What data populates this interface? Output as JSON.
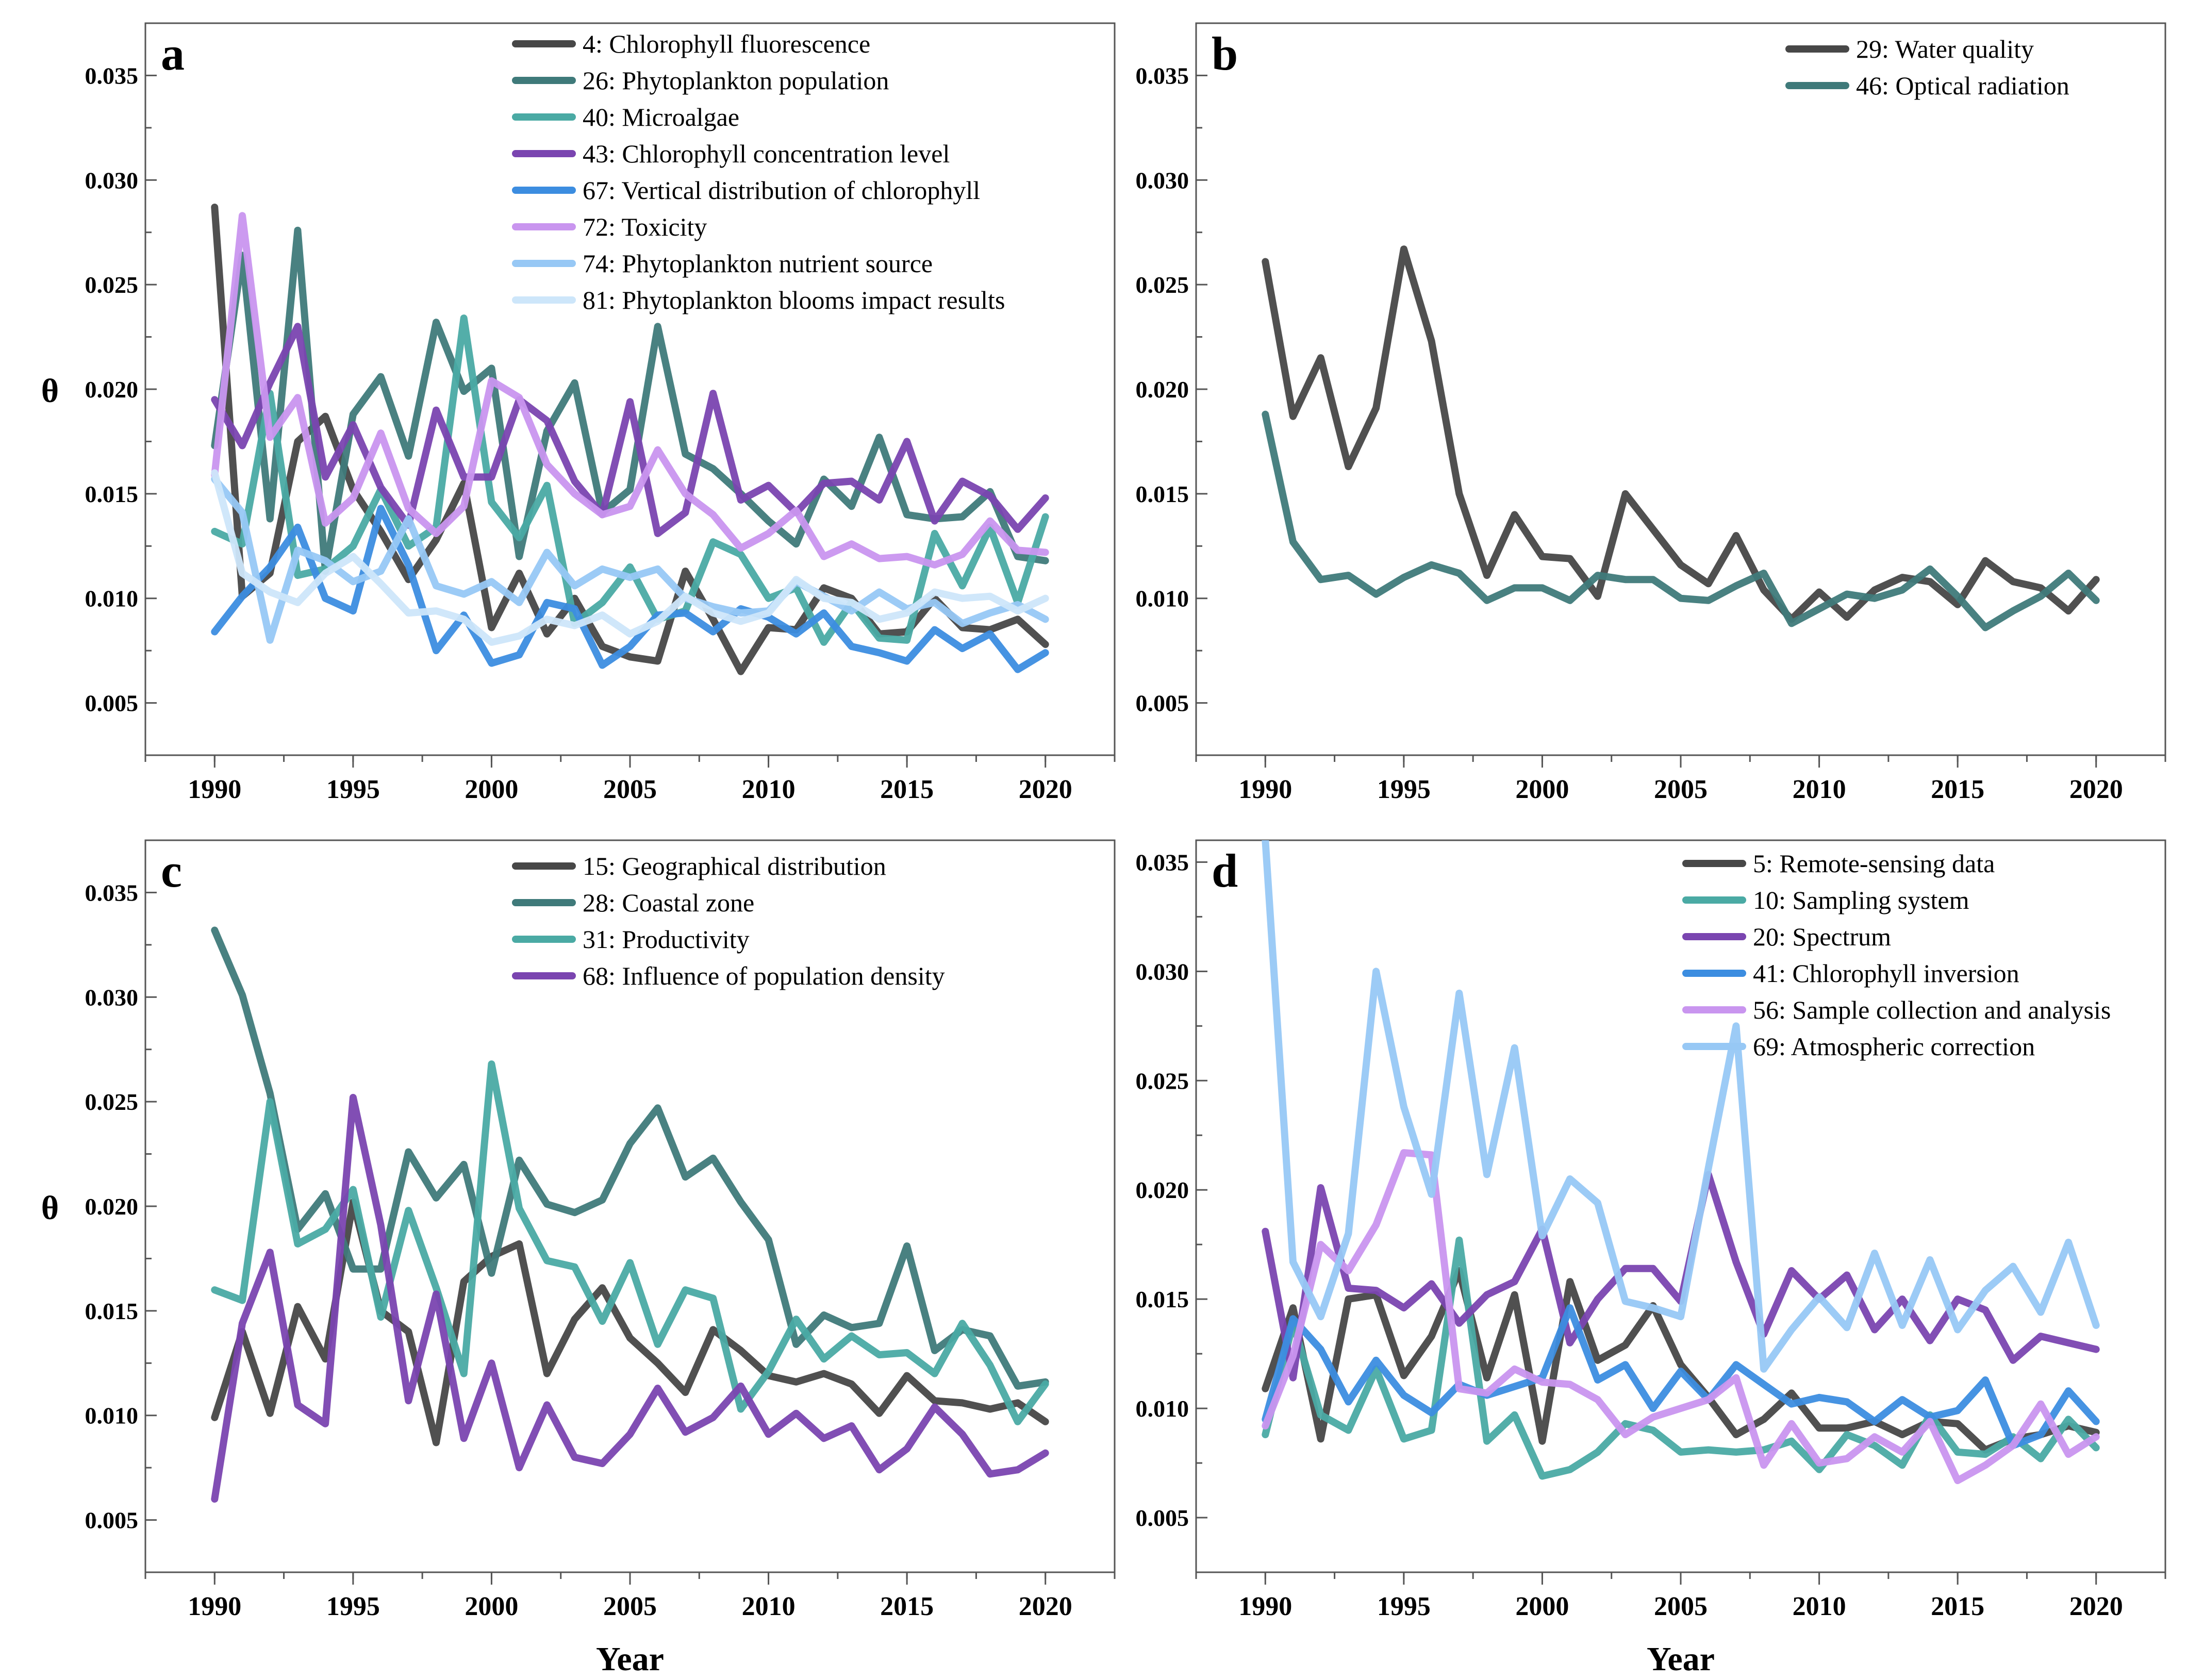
{
  "chart_data": [
    {
      "type": "line",
      "panel": "a",
      "ylabel": "θ",
      "xlabel": "",
      "x": [
        1990,
        1991,
        1992,
        1993,
        1994,
        1995,
        1996,
        1997,
        1998,
        1999,
        2000,
        2001,
        2002,
        2003,
        2004,
        2005,
        2006,
        2007,
        2008,
        2009,
        2010,
        2011,
        2012,
        2013,
        2014,
        2015,
        2016,
        2017,
        2018,
        2019,
        2020
      ],
      "xlim": [
        1987.5,
        2022.5
      ],
      "ylim": [
        0.0025,
        0.0375
      ],
      "xticks": [
        "1990",
        "1995",
        "2000",
        "2005",
        "2010",
        "2015",
        "2020"
      ],
      "yticks": [
        "0.005",
        "0.010",
        "0.015",
        "0.020",
        "0.025",
        "0.030",
        "0.035"
      ],
      "series": [
        {
          "name": "4: Chlorophyll fluorescence",
          "color": "#474747",
          "values": [
            0.0287,
            0.0101,
            0.0112,
            0.0175,
            0.0187,
            0.0152,
            0.0132,
            0.0109,
            0.0128,
            0.0155,
            0.0086,
            0.0112,
            0.0083,
            0.01,
            0.0077,
            0.0072,
            0.007,
            0.0113,
            0.009,
            0.0065,
            0.0086,
            0.0085,
            0.0105,
            0.01,
            0.0083,
            0.0084,
            0.01,
            0.0086,
            0.0085,
            0.009,
            0.0078
          ]
        },
        {
          "name": "26: Phytoplankton population",
          "color": "#3f7a7a",
          "values": [
            0.0173,
            0.0264,
            0.0138,
            0.0276,
            0.0113,
            0.0188,
            0.0206,
            0.0168,
            0.0232,
            0.0199,
            0.021,
            0.012,
            0.018,
            0.0203,
            0.0141,
            0.0152,
            0.023,
            0.0169,
            0.0162,
            0.015,
            0.0137,
            0.0126,
            0.0157,
            0.0144,
            0.0177,
            0.014,
            0.0138,
            0.0139,
            0.0151,
            0.012,
            0.0118
          ]
        },
        {
          "name": "40: Microalgae",
          "color": "#4aaaa4",
          "values": [
            0.0132,
            0.0126,
            0.0198,
            0.0111,
            0.0114,
            0.0125,
            0.0152,
            0.0125,
            0.0134,
            0.0234,
            0.0146,
            0.0129,
            0.0154,
            0.0088,
            0.0098,
            0.0115,
            0.009,
            0.0094,
            0.0127,
            0.0121,
            0.01,
            0.0105,
            0.0079,
            0.0098,
            0.0081,
            0.008,
            0.0131,
            0.0106,
            0.0134,
            0.0098,
            0.0139
          ]
        },
        {
          "name": "43: Chlorophyll concentration level",
          "color": "#7a45b0",
          "values": [
            0.0195,
            0.0173,
            0.0203,
            0.023,
            0.0158,
            0.0183,
            0.0153,
            0.0135,
            0.019,
            0.0158,
            0.0158,
            0.0195,
            0.0185,
            0.0156,
            0.014,
            0.0194,
            0.0131,
            0.0141,
            0.0198,
            0.0147,
            0.0154,
            0.0141,
            0.0155,
            0.0156,
            0.0147,
            0.0175,
            0.0137,
            0.0156,
            0.0149,
            0.0133,
            0.0148
          ]
        },
        {
          "name": "67: Vertical distribution of chlorophyll",
          "color": "#3c8de0",
          "values": [
            0.0084,
            0.0101,
            0.0115,
            0.0134,
            0.01,
            0.0094,
            0.0143,
            0.0116,
            0.0075,
            0.0092,
            0.0069,
            0.0073,
            0.0098,
            0.0095,
            0.0068,
            0.0077,
            0.0092,
            0.0093,
            0.0084,
            0.0095,
            0.0091,
            0.0083,
            0.0093,
            0.0077,
            0.0074,
            0.007,
            0.0085,
            0.0076,
            0.0083,
            0.0066,
            0.0074
          ]
        },
        {
          "name": "72: Toxicity",
          "color": "#c995ef",
          "values": [
            0.0159,
            0.0283,
            0.0177,
            0.0196,
            0.0136,
            0.0148,
            0.0179,
            0.0143,
            0.0131,
            0.0144,
            0.0204,
            0.0196,
            0.0164,
            0.015,
            0.014,
            0.0144,
            0.0171,
            0.015,
            0.014,
            0.0124,
            0.0131,
            0.0142,
            0.012,
            0.0126,
            0.0119,
            0.012,
            0.0116,
            0.0121,
            0.0137,
            0.0123,
            0.0122
          ]
        },
        {
          "name": "74: Phytoplankton nutrient source",
          "color": "#97c8f5",
          "values": [
            0.0157,
            0.0141,
            0.008,
            0.0123,
            0.0118,
            0.0108,
            0.0113,
            0.0138,
            0.0106,
            0.0102,
            0.0108,
            0.0098,
            0.0122,
            0.0106,
            0.0114,
            0.011,
            0.0114,
            0.01,
            0.0096,
            0.0093,
            0.0094,
            0.0108,
            0.0101,
            0.0094,
            0.0103,
            0.0095,
            0.0098,
            0.0088,
            0.0093,
            0.0097,
            0.009
          ]
        },
        {
          "name": "81: Phytoplankton blooms impact results",
          "color": "#cde6fa",
          "values": [
            0.016,
            0.0112,
            0.0103,
            0.0098,
            0.0112,
            0.012,
            0.0107,
            0.0093,
            0.0094,
            0.009,
            0.0079,
            0.0082,
            0.009,
            0.0087,
            0.0092,
            0.0083,
            0.0089,
            0.0101,
            0.0093,
            0.0089,
            0.0093,
            0.0109,
            0.01,
            0.0098,
            0.009,
            0.0093,
            0.0103,
            0.01,
            0.0101,
            0.0094,
            0.01
          ]
        }
      ]
    },
    {
      "type": "line",
      "panel": "b",
      "ylabel": "",
      "xlabel": "",
      "x": [
        1990,
        1991,
        1992,
        1993,
        1994,
        1995,
        1996,
        1997,
        1998,
        1999,
        2000,
        2001,
        2002,
        2003,
        2004,
        2005,
        2006,
        2007,
        2008,
        2009,
        2010,
        2011,
        2012,
        2013,
        2014,
        2015,
        2016,
        2017,
        2018,
        2019,
        2020
      ],
      "xlim": [
        1987.5,
        2022.5
      ],
      "ylim": [
        0.0025,
        0.0375
      ],
      "xticks": [
        "1990",
        "1995",
        "2000",
        "2005",
        "2010",
        "2015",
        "2020"
      ],
      "yticks": [
        "0.005",
        "0.010",
        "0.015",
        "0.020",
        "0.025",
        "0.030",
        "0.035"
      ],
      "series": [
        {
          "name": "29: Water quality",
          "color": "#474747",
          "values": [
            0.0261,
            0.0187,
            0.0215,
            0.0163,
            0.0191,
            0.0267,
            0.0223,
            0.015,
            0.0111,
            0.014,
            0.012,
            0.0119,
            0.0101,
            0.015,
            0.0133,
            0.0116,
            0.0107,
            0.013,
            0.0104,
            0.009,
            0.0103,
            0.0091,
            0.0104,
            0.011,
            0.0108,
            0.0097,
            0.0118,
            0.0108,
            0.0105,
            0.0094,
            0.0109
          ]
        },
        {
          "name": "46: Optical radiation",
          "color": "#3f7a7a",
          "values": [
            0.0188,
            0.0127,
            0.0109,
            0.0111,
            0.0102,
            0.011,
            0.0116,
            0.0112,
            0.0099,
            0.0105,
            0.0105,
            0.0099,
            0.0111,
            0.0109,
            0.0109,
            0.01,
            0.0099,
            0.0106,
            0.0112,
            0.0088,
            0.0095,
            0.0102,
            0.01,
            0.0104,
            0.0114,
            0.0101,
            0.0086,
            0.0094,
            0.0101,
            0.0112,
            0.0099
          ]
        }
      ]
    },
    {
      "type": "line",
      "panel": "c",
      "ylabel": "θ",
      "xlabel": "Year",
      "x": [
        1990,
        1991,
        1992,
        1993,
        1994,
        1995,
        1996,
        1997,
        1998,
        1999,
        2000,
        2001,
        2002,
        2003,
        2004,
        2005,
        2006,
        2007,
        2008,
        2009,
        2010,
        2011,
        2012,
        2013,
        2014,
        2015,
        2016,
        2017,
        2018,
        2019,
        2020
      ],
      "xlim": [
        1987.5,
        2022.5
      ],
      "ylim": [
        0.0025,
        0.0375
      ],
      "xticks": [
        "1990",
        "1995",
        "2000",
        "2005",
        "2010",
        "2015",
        "2020"
      ],
      "yticks": [
        "0.005",
        "0.010",
        "0.015",
        "0.020",
        "0.025",
        "0.030",
        "0.035"
      ],
      "series": [
        {
          "name": "15: Geographical distribution",
          "color": "#474747",
          "values": [
            0.0099,
            0.014,
            0.0101,
            0.0152,
            0.0127,
            0.0202,
            0.015,
            0.014,
            0.0087,
            0.0164,
            0.0176,
            0.0182,
            0.012,
            0.0146,
            0.0161,
            0.0137,
            0.0125,
            0.0111,
            0.0141,
            0.0131,
            0.0119,
            0.0116,
            0.012,
            0.0115,
            0.0101,
            0.0119,
            0.0107,
            0.0106,
            0.0103,
            0.0106,
            0.0097
          ]
        },
        {
          "name": "28: Coastal zone",
          "color": "#3f7a7a",
          "values": [
            0.0332,
            0.0301,
            0.0254,
            0.0189,
            0.0206,
            0.017,
            0.017,
            0.0226,
            0.0204,
            0.022,
            0.0168,
            0.0222,
            0.0201,
            0.0197,
            0.0203,
            0.023,
            0.0247,
            0.0214,
            0.0223,
            0.0202,
            0.0184,
            0.0134,
            0.0148,
            0.0142,
            0.0144,
            0.0181,
            0.0131,
            0.0141,
            0.0138,
            0.0114,
            0.0116
          ]
        },
        {
          "name": "31: Productivity",
          "color": "#4aaaa4",
          "values": [
            0.016,
            0.0155,
            0.025,
            0.0182,
            0.0189,
            0.0208,
            0.0147,
            0.0198,
            0.0161,
            0.012,
            0.0268,
            0.0199,
            0.0174,
            0.0171,
            0.0145,
            0.0173,
            0.0134,
            0.016,
            0.0156,
            0.0103,
            0.0121,
            0.0146,
            0.0127,
            0.0138,
            0.0129,
            0.013,
            0.012,
            0.0144,
            0.0124,
            0.0097,
            0.0115
          ]
        },
        {
          "name": "68: Influence of population density",
          "color": "#7a45b0",
          "values": [
            0.006,
            0.0144,
            0.0178,
            0.0105,
            0.0096,
            0.0252,
            0.0191,
            0.0107,
            0.0158,
            0.0089,
            0.0125,
            0.0075,
            0.0105,
            0.008,
            0.0077,
            0.0091,
            0.0113,
            0.0092,
            0.0099,
            0.0114,
            0.0091,
            0.0101,
            0.0089,
            0.0095,
            0.0074,
            0.0084,
            0.0104,
            0.0091,
            0.0072,
            0.0074,
            0.0082
          ]
        }
      ]
    },
    {
      "type": "line",
      "panel": "d",
      "ylabel": "",
      "xlabel": "Year",
      "x": [
        1990,
        1991,
        1992,
        1993,
        1994,
        1995,
        1996,
        1997,
        1998,
        1999,
        2000,
        2001,
        2002,
        2003,
        2004,
        2005,
        2006,
        2007,
        2008,
        2009,
        2010,
        2011,
        2012,
        2013,
        2014,
        2015,
        2016,
        2017,
        2018,
        2019,
        2020
      ],
      "xlim": [
        1987.5,
        2022.5
      ],
      "ylim": [
        0.0025,
        0.036
      ],
      "xticks": [
        "1990",
        "1995",
        "2000",
        "2005",
        "2010",
        "2015",
        "2020"
      ],
      "yticks": [
        "0.005",
        "0.010",
        "0.015",
        "0.020",
        "0.025",
        "0.030",
        "0.035"
      ],
      "series": [
        {
          "name": "5: Remote-sensing data",
          "color": "#474747",
          "values": [
            0.0109,
            0.0146,
            0.0086,
            0.015,
            0.0152,
            0.0115,
            0.0133,
            0.0163,
            0.0114,
            0.0152,
            0.0085,
            0.0158,
            0.0122,
            0.0129,
            0.0147,
            0.012,
            0.0105,
            0.0088,
            0.0095,
            0.0107,
            0.0091,
            0.0091,
            0.0094,
            0.0088,
            0.0094,
            0.0093,
            0.0081,
            0.0086,
            0.0088,
            0.0092,
            0.0089
          ]
        },
        {
          "name": "10: Sampling system",
          "color": "#4aaaa4",
          "values": [
            0.0088,
            0.0139,
            0.0097,
            0.009,
            0.0118,
            0.0086,
            0.009,
            0.0177,
            0.0085,
            0.0097,
            0.0069,
            0.0072,
            0.008,
            0.0093,
            0.009,
            0.008,
            0.0081,
            0.008,
            0.0081,
            0.0085,
            0.0072,
            0.0088,
            0.0083,
            0.0074,
            0.0097,
            0.008,
            0.0079,
            0.0087,
            0.0077,
            0.0095,
            0.0082
          ]
        },
        {
          "name": "20: Spectrum",
          "color": "#7a45b0",
          "values": [
            0.0181,
            0.0114,
            0.0201,
            0.0155,
            0.0154,
            0.0146,
            0.0157,
            0.0139,
            0.0152,
            0.0158,
            0.0182,
            0.013,
            0.015,
            0.0164,
            0.0164,
            0.0149,
            0.0207,
            0.0167,
            0.0134,
            0.0163,
            0.015,
            0.0161,
            0.0136,
            0.015,
            0.0131,
            0.015,
            0.0145,
            0.0122,
            0.0133,
            0.013,
            0.0127
          ]
        },
        {
          "name": "41: Chlorophyll inversion",
          "color": "#3c8de0",
          "values": [
            0.0095,
            0.0141,
            0.0127,
            0.0103,
            0.0122,
            0.0106,
            0.0098,
            0.0111,
            0.0106,
            0.011,
            0.0114,
            0.0146,
            0.0113,
            0.012,
            0.01,
            0.0117,
            0.0104,
            0.012,
            0.0111,
            0.0102,
            0.0105,
            0.0103,
            0.0094,
            0.0104,
            0.0096,
            0.0099,
            0.0113,
            0.0083,
            0.0088,
            0.0108,
            0.0094
          ]
        },
        {
          "name": "56: Sample collection and analysis",
          "color": "#c995ef",
          "values": [
            0.0092,
            0.0124,
            0.0175,
            0.0163,
            0.0184,
            0.0217,
            0.0216,
            0.0109,
            0.0107,
            0.0118,
            0.0112,
            0.0111,
            0.0104,
            0.0088,
            0.0096,
            0.01,
            0.0104,
            0.0114,
            0.0074,
            0.0093,
            0.0075,
            0.0077,
            0.0087,
            0.008,
            0.0094,
            0.0067,
            0.0074,
            0.0083,
            0.0102,
            0.0079,
            0.0087
          ]
        },
        {
          "name": "69: Atmospheric correction",
          "color": "#97c8f5",
          "values": [
            0.036,
            0.0167,
            0.0142,
            0.018,
            0.03,
            0.0238,
            0.0198,
            0.029,
            0.0207,
            0.0265,
            0.0179,
            0.0205,
            0.0194,
            0.0149,
            0.0146,
            0.0142,
            0.021,
            0.0275,
            0.0118,
            0.0136,
            0.0151,
            0.0137,
            0.0171,
            0.0138,
            0.0168,
            0.0136,
            0.0154,
            0.0165,
            0.0144,
            0.0176,
            0.0138
          ]
        }
      ]
    }
  ]
}
